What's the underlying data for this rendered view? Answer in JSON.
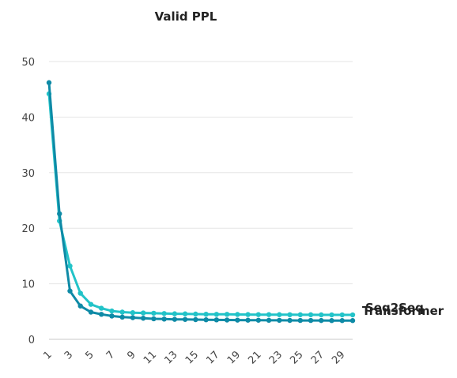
{
  "chart_data": {
    "type": "line",
    "title": "Valid PPL",
    "xlabel": "",
    "ylabel": "",
    "ylim": [
      0,
      50
    ],
    "yticks": [
      0,
      10,
      20,
      30,
      40,
      50
    ],
    "x": [
      1,
      2,
      3,
      4,
      5,
      6,
      7,
      8,
      9,
      10,
      11,
      12,
      13,
      14,
      15,
      16,
      17,
      18,
      19,
      20,
      21,
      22,
      23,
      24,
      25,
      26,
      27,
      28,
      29,
      30
    ],
    "xtick_labels": [
      "1",
      "3",
      "5",
      "7",
      "9",
      "11",
      "13",
      "15",
      "17",
      "19",
      "21",
      "23",
      "25",
      "27",
      "29"
    ],
    "grid": "horizontal",
    "legend": "right, labels at line ends",
    "series": [
      {
        "name": "Seq2Seq",
        "color": "#22c3c8",
        "values": [
          44.2,
          21.3,
          13.2,
          8.3,
          6.3,
          5.6,
          5.1,
          4.9,
          4.8,
          4.75,
          4.7,
          4.65,
          4.6,
          4.58,
          4.55,
          4.52,
          4.5,
          4.5,
          4.48,
          4.46,
          4.45,
          4.45,
          4.44,
          4.43,
          4.42,
          4.42,
          4.41,
          4.4,
          4.4,
          4.4
        ]
      },
      {
        "name": "Transformer",
        "color": "#0e8aa6",
        "values": [
          46.2,
          22.6,
          8.7,
          6.0,
          4.9,
          4.5,
          4.2,
          4.0,
          3.9,
          3.8,
          3.7,
          3.65,
          3.6,
          3.58,
          3.55,
          3.52,
          3.5,
          3.48,
          3.46,
          3.45,
          3.44,
          3.43,
          3.42,
          3.41,
          3.4,
          3.4,
          3.39,
          3.38,
          3.38,
          3.38
        ]
      }
    ]
  }
}
